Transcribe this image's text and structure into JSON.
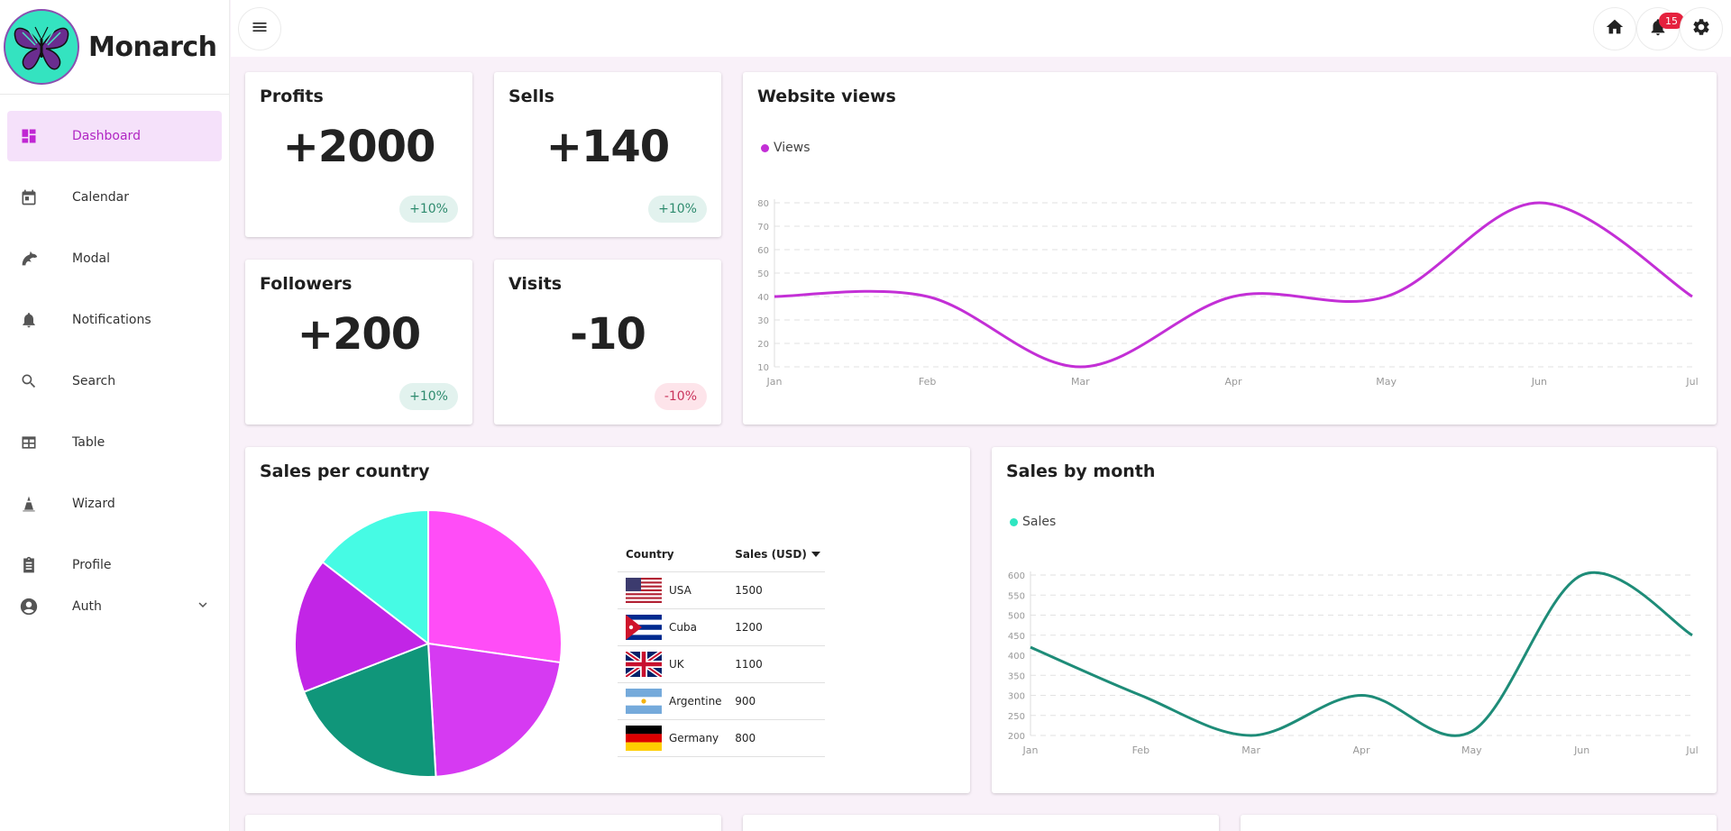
{
  "brand": {
    "name": "Monarch"
  },
  "sidebar": {
    "items": [
      {
        "label": "Dashboard",
        "icon": "dashboard-icon"
      },
      {
        "label": "Calendar",
        "icon": "calendar-icon"
      },
      {
        "label": "Modal",
        "icon": "dolphin-icon"
      },
      {
        "label": "Notifications",
        "icon": "bell-icon"
      },
      {
        "label": "Search",
        "icon": "search-icon"
      },
      {
        "label": "Table",
        "icon": "table-icon"
      },
      {
        "label": "Wizard",
        "icon": "wizard-icon"
      },
      {
        "label": "Profile",
        "icon": "clipboard-icon"
      },
      {
        "label": "Auth",
        "icon": "account-circle-icon"
      }
    ]
  },
  "topbar": {
    "notification_count": "15"
  },
  "stats": [
    {
      "title": "Profits",
      "value": "+2000",
      "change": "+10%"
    },
    {
      "title": "Sells",
      "value": "+140",
      "change": "+10%"
    },
    {
      "title": "Followers",
      "value": "+200",
      "change": "+10%"
    },
    {
      "title": "Visits",
      "value": "-10",
      "change": "-10%"
    }
  ],
  "website_views": {
    "title": "Website views",
    "legend": "Views"
  },
  "sales_country": {
    "title": "Sales per country",
    "headers": {
      "country": "Country",
      "sales": "Sales (USD)"
    },
    "rows": [
      {
        "country": "USA",
        "sales": "1500"
      },
      {
        "country": "Cuba",
        "sales": "1200"
      },
      {
        "country": "UK",
        "sales": "1100"
      },
      {
        "country": "Argentine",
        "sales": "900"
      },
      {
        "country": "Germany",
        "sales": "800"
      }
    ]
  },
  "sales_month": {
    "title": "Sales by month",
    "legend": "Sales"
  },
  "colors": {
    "accent": "#c026d3",
    "views_line": "#c32fd6",
    "sales_line": "#1e8c78",
    "pie": [
      "#ff4df7",
      "#d63af2",
      "#10967a",
      "#c225e6",
      "#46fbe4"
    ]
  },
  "chart_data": [
    {
      "type": "line",
      "title": "Website views",
      "categories": [
        "Jan",
        "Feb",
        "Mar",
        "Apr",
        "May",
        "Jun",
        "Jul"
      ],
      "series": [
        {
          "name": "Views",
          "values": [
            40,
            40,
            10,
            40,
            40,
            80,
            40
          ]
        }
      ],
      "yticks": [
        10,
        20,
        30,
        40,
        50,
        60,
        70,
        80
      ],
      "ylim": [
        10,
        80
      ]
    },
    {
      "type": "line",
      "title": "Sales by month",
      "categories": [
        "Jan",
        "Feb",
        "Mar",
        "Apr",
        "May",
        "Jun",
        "Jul"
      ],
      "series": [
        {
          "name": "Sales",
          "values": [
            420,
            300,
            200,
            300,
            210,
            600,
            450
          ]
        }
      ],
      "yticks": [
        200,
        250,
        300,
        350,
        400,
        450,
        500,
        550,
        600
      ],
      "ylim": [
        200,
        600
      ]
    },
    {
      "type": "pie",
      "title": "Sales per country",
      "categories": [
        "USA",
        "Cuba",
        "UK",
        "Argentine",
        "Germany"
      ],
      "values": [
        1500,
        1200,
        1100,
        900,
        800
      ]
    }
  ]
}
